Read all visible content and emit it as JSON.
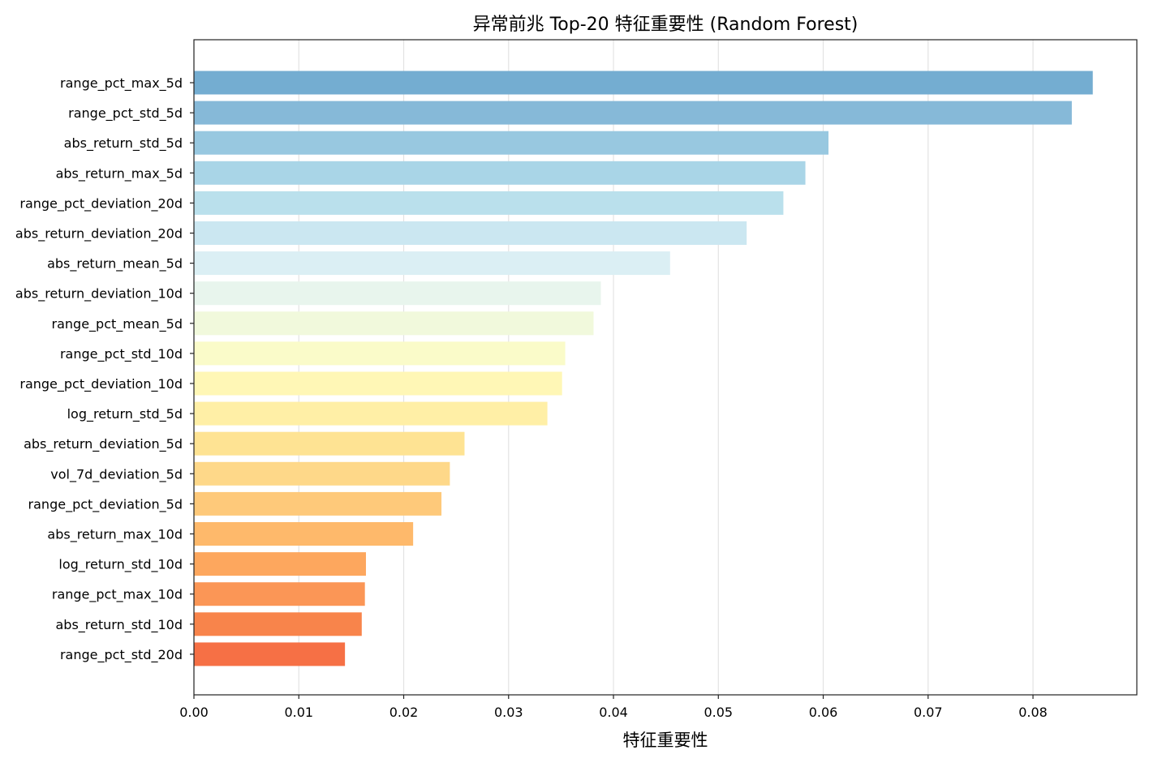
{
  "chart_data": {
    "type": "bar",
    "orientation": "horizontal",
    "title": "异常前兆 Top-20 特征重要性 (Random Forest)",
    "xlabel": "特征重要性",
    "ylabel": "",
    "xlim": [
      0,
      0.0899
    ],
    "xticks": [
      "0.00",
      "0.01",
      "0.02",
      "0.03",
      "0.04",
      "0.05",
      "0.06",
      "0.07",
      "0.08"
    ],
    "grid": "vertical",
    "categories": [
      "range_pct_max_5d",
      "range_pct_std_5d",
      "abs_return_std_5d",
      "abs_return_max_5d",
      "range_pct_deviation_20d",
      "abs_return_deviation_20d",
      "abs_return_mean_5d",
      "abs_return_deviation_10d",
      "range_pct_mean_5d",
      "range_pct_std_10d",
      "range_pct_deviation_10d",
      "log_return_std_5d",
      "abs_return_deviation_5d",
      "vol_7d_deviation_5d",
      "range_pct_deviation_5d",
      "abs_return_max_10d",
      "log_return_std_10d",
      "range_pct_max_10d",
      "abs_return_std_10d",
      "range_pct_std_20d"
    ],
    "values": [
      0.0857,
      0.0837,
      0.0605,
      0.0583,
      0.0562,
      0.0527,
      0.0454,
      0.0388,
      0.0381,
      0.0354,
      0.0351,
      0.0337,
      0.0258,
      0.0244,
      0.0236,
      0.0209,
      0.0164,
      0.0163,
      0.016,
      0.0144
    ],
    "colors": [
      "#74add1",
      "#86b9d8",
      "#98c8e0",
      "#a9d5e7",
      "#bae0ec",
      "#cbe7f1",
      "#dbeff4",
      "#e8f5ed",
      "#f1f9dc",
      "#fafbc9",
      "#fff7b6",
      "#ffefa6",
      "#fee393",
      "#fed889",
      "#fec97a",
      "#feb96b",
      "#fda75e",
      "#fb9656",
      "#f8844b",
      "#f67045"
    ]
  }
}
